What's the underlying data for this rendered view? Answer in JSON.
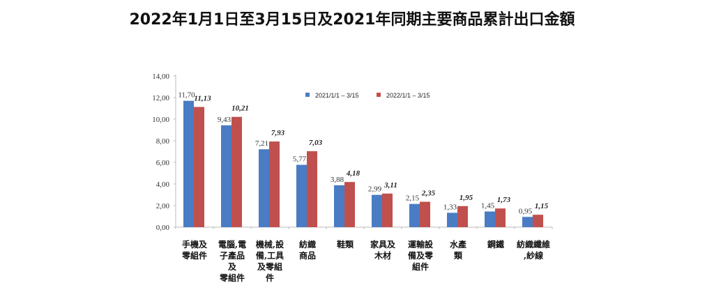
{
  "chart_data": {
    "type": "bar",
    "title": "2022年1月1日至3月15日及2021年同期主要商品累計出口金額",
    "categories": [
      "手機及\n零組件",
      "電腦,電\n子產品\n及\n零組件",
      "機械,設\n備,工具\n及零組\n件",
      "紡織\n商品",
      "鞋類",
      "家具及\n木材",
      "運輸設\n備及零\n組件",
      "水產\n類",
      "鋼鐵",
      "紡織纖維\n,紗線"
    ],
    "series": [
      {
        "name": "2021/1/1 – 3/15",
        "color": "#4a7cc4",
        "values": [
          11.7,
          9.43,
          7.21,
          5.77,
          3.88,
          2.99,
          2.15,
          1.33,
          1.45,
          0.95
        ],
        "labels": [
          "11,70",
          "9,43",
          "7,21",
          "5,77",
          "3,88",
          "2,99",
          "2,15",
          "1,33",
          "1,45",
          "0,95"
        ]
      },
      {
        "name": "2022/1/1 – 3/15",
        "color": "#c0504d",
        "values": [
          11.13,
          10.21,
          7.93,
          7.03,
          4.18,
          3.11,
          2.35,
          1.95,
          1.73,
          1.15
        ],
        "labels": [
          "11,13",
          "10,21",
          "7,93",
          "7,03",
          "4,18",
          "3,11",
          "2,35",
          "1,95",
          "1,73",
          "1,15"
        ]
      }
    ],
    "ylim": [
      0,
      14
    ],
    "yticks": [
      0,
      2,
      4,
      6,
      8,
      10,
      12,
      14
    ],
    "ytick_labels": [
      "0,00",
      "2,00",
      "4,00",
      "6,00",
      "8,00",
      "10,00",
      "12,00",
      "14,00"
    ],
    "xlabel": "",
    "ylabel": "",
    "grid": false,
    "legend": "top-right"
  }
}
